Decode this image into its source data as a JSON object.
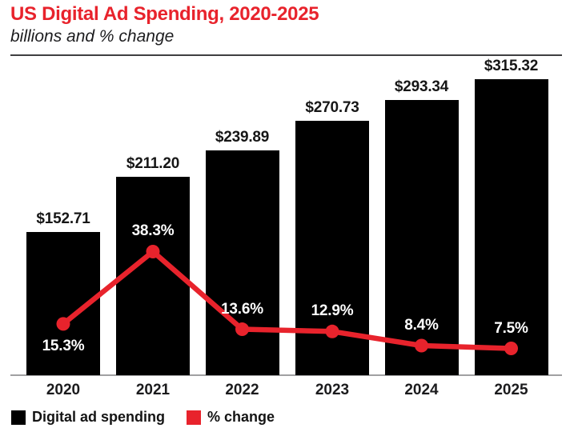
{
  "title": "US Digital Ad Spending, 2020-2025",
  "subtitle": "billions and % change",
  "colors": {
    "accent_red": "#e8232c",
    "bar_black": "#000000",
    "value_label_dark": "#161616",
    "pct_label_white": "#ffffff",
    "header_rule": "#3f3f41",
    "axis_line": "#a0a0a2",
    "background": "#ffffff"
  },
  "legend": {
    "items": [
      {
        "label": "Digital ad spending",
        "color": "#000000"
      },
      {
        "label": "% change",
        "color": "#e8232c"
      }
    ]
  },
  "chart_data": {
    "type": "bar",
    "subtype": "combo-bar-line",
    "title": "US Digital Ad Spending, 2020-2025",
    "subtitle": "billions and % change",
    "categories": [
      "2020",
      "2021",
      "2022",
      "2023",
      "2024",
      "2025"
    ],
    "series": [
      {
        "name": "Digital ad spending",
        "type": "bar",
        "unit": "USD billions",
        "color": "#000000",
        "values": [
          152.71,
          211.2,
          239.89,
          270.73,
          293.34,
          315.32
        ],
        "labels": [
          "$152.71",
          "$211.20",
          "$239.89",
          "$270.73",
          "$293.34",
          "$315.32"
        ]
      },
      {
        "name": "% change",
        "type": "line",
        "unit": "percent",
        "color": "#e8232c",
        "values": [
          15.3,
          38.3,
          13.6,
          12.9,
          8.4,
          7.5
        ],
        "labels": [
          "15.3%",
          "38.3%",
          "13.6%",
          "12.9%",
          "8.4%",
          "7.5%"
        ]
      }
    ],
    "xlabel": "",
    "ylabel": "",
    "bar_axis_range": [
      0,
      315.32
    ],
    "line_axis_range": [
      0,
      40
    ],
    "grid": false,
    "axis_ticks_shown": false,
    "value_labels_shown": true,
    "legend_position": "bottom-left"
  }
}
